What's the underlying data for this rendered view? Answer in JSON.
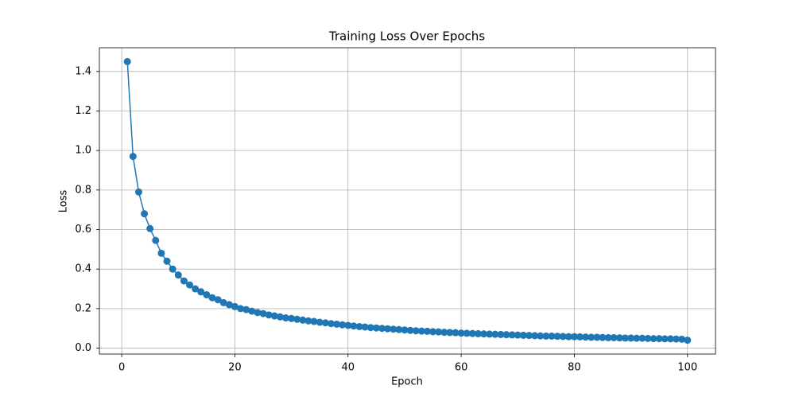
{
  "chart_data": {
    "type": "line",
    "title": "Training Loss Over Epochs",
    "xlabel": "Epoch",
    "ylabel": "Loss",
    "x": [
      1,
      2,
      3,
      4,
      5,
      6,
      7,
      8,
      9,
      10,
      11,
      12,
      13,
      14,
      15,
      16,
      17,
      18,
      19,
      20,
      21,
      22,
      23,
      24,
      25,
      26,
      27,
      28,
      29,
      30,
      31,
      32,
      33,
      34,
      35,
      36,
      37,
      38,
      39,
      40,
      41,
      42,
      43,
      44,
      45,
      46,
      47,
      48,
      49,
      50,
      51,
      52,
      53,
      54,
      55,
      56,
      57,
      58,
      59,
      60,
      61,
      62,
      63,
      64,
      65,
      66,
      67,
      68,
      69,
      70,
      71,
      72,
      73,
      74,
      75,
      76,
      77,
      78,
      79,
      80,
      81,
      82,
      83,
      84,
      85,
      86,
      87,
      88,
      89,
      90,
      91,
      92,
      93,
      94,
      95,
      96,
      97,
      98,
      99,
      100
    ],
    "series": [
      {
        "name": "Loss",
        "color": "#1f77b4",
        "values": [
          1.45,
          0.97,
          0.79,
          0.68,
          0.605,
          0.545,
          0.48,
          0.44,
          0.4,
          0.37,
          0.34,
          0.32,
          0.3,
          0.285,
          0.27,
          0.255,
          0.245,
          0.23,
          0.22,
          0.21,
          0.2,
          0.195,
          0.187,
          0.18,
          0.175,
          0.168,
          0.163,
          0.158,
          0.153,
          0.15,
          0.146,
          0.142,
          0.138,
          0.135,
          0.131,
          0.128,
          0.124,
          0.121,
          0.118,
          0.115,
          0.112,
          0.109,
          0.107,
          0.104,
          0.102,
          0.1,
          0.098,
          0.096,
          0.094,
          0.092,
          0.09,
          0.088,
          0.086,
          0.085,
          0.083,
          0.082,
          0.08,
          0.079,
          0.078,
          0.076,
          0.075,
          0.074,
          0.073,
          0.072,
          0.071,
          0.07,
          0.069,
          0.068,
          0.067,
          0.066,
          0.065,
          0.064,
          0.063,
          0.062,
          0.061,
          0.061,
          0.06,
          0.059,
          0.058,
          0.058,
          0.057,
          0.056,
          0.055,
          0.055,
          0.054,
          0.053,
          0.053,
          0.052,
          0.051,
          0.051,
          0.05,
          0.05,
          0.049,
          0.048,
          0.048,
          0.047,
          0.047,
          0.046,
          0.045,
          0.04
        ]
      }
    ],
    "xlim": [
      -3.95,
      104.95
    ],
    "xticks": [
      0,
      20,
      40,
      60,
      80,
      100
    ],
    "ylim": [
      -0.03,
      1.52
    ],
    "yticks": [
      {
        "value": 0,
        "label": "0.0"
      },
      0.2,
      0.4,
      0.6,
      0.8,
      {
        "value": 1,
        "label": "1.0"
      },
      1.2,
      1.4
    ],
    "grid": true
  }
}
